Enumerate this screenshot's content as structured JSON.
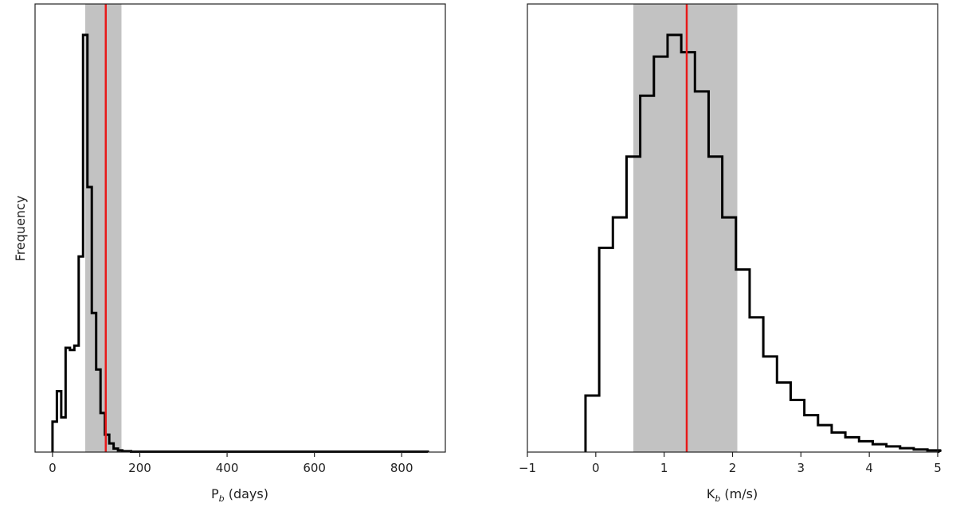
{
  "chart_data": [
    {
      "type": "histogram",
      "xlabel_main": "P",
      "xlabel_sub": "b",
      "xlabel_rest": " (days)",
      "ylabel": "Frequency",
      "xlim": [
        -40,
        900
      ],
      "ylim": [
        0,
        1.0
      ],
      "xticks": [
        0,
        200,
        400,
        600,
        800
      ],
      "yticks_shown": false,
      "shaded_interval": [
        75,
        158
      ],
      "marker_line": 122,
      "bin_width": 10,
      "bin_start": 0,
      "counts": [
        0.07,
        0.14,
        0.08,
        0.24,
        0.235,
        0.245,
        0.45,
        0.96,
        0.61,
        0.32,
        0.19,
        0.09,
        0.04,
        0.02,
        0.008,
        0.004,
        0.002,
        0.002,
        0.001,
        0.001,
        0.001,
        0.001,
        0.001,
        0.001,
        0.001,
        0.001,
        0.001,
        0.001,
        0.001,
        0.001,
        0.001,
        0.001,
        0.001,
        0.001,
        0.001,
        0.001,
        0.001,
        0.001,
        0.001,
        0.001,
        0.001,
        0.001,
        0.001,
        0.001,
        0.001,
        0.001,
        0.001,
        0.001,
        0.001,
        0.001,
        0.001,
        0.001,
        0.001,
        0.001,
        0.001,
        0.001,
        0.001,
        0.001,
        0.001,
        0.001,
        0.001,
        0.001,
        0.001,
        0.001,
        0.001,
        0.001,
        0.001,
        0.001,
        0.001,
        0.001,
        0.001,
        0.001,
        0.001,
        0.001,
        0.001,
        0.001,
        0.001,
        0.001,
        0.001,
        0.001,
        0.001,
        0.001,
        0.001,
        0.001,
        0.001,
        0.001
      ]
    },
    {
      "type": "histogram",
      "xlabel_main": "K",
      "xlabel_sub": "b",
      "xlabel_rest": " (m/s)",
      "xlim": [
        -1,
        5
      ],
      "ylim": [
        0,
        1.0
      ],
      "xticks": [
        -1,
        0,
        1,
        2,
        3,
        4,
        5
      ],
      "xtick_labels": [
        "−1",
        "0",
        "1",
        "2",
        "3",
        "4",
        "5"
      ],
      "yticks_shown": false,
      "shaded_interval": [
        0.55,
        2.07
      ],
      "marker_line": 1.33,
      "bin_width": 0.2,
      "bin_start": -0.15,
      "counts": [
        0.13,
        0.47,
        0.54,
        0.68,
        0.82,
        0.91,
        0.96,
        0.92,
        0.83,
        0.68,
        0.54,
        0.42,
        0.31,
        0.22,
        0.16,
        0.12,
        0.085,
        0.062,
        0.045,
        0.034,
        0.025,
        0.018,
        0.013,
        0.009,
        0.006,
        0.004
      ]
    }
  ],
  "colors": {
    "step_line": "#000000",
    "marker_line": "#e8191a",
    "shade": "#c2c2c2",
    "axes": "#222222"
  }
}
